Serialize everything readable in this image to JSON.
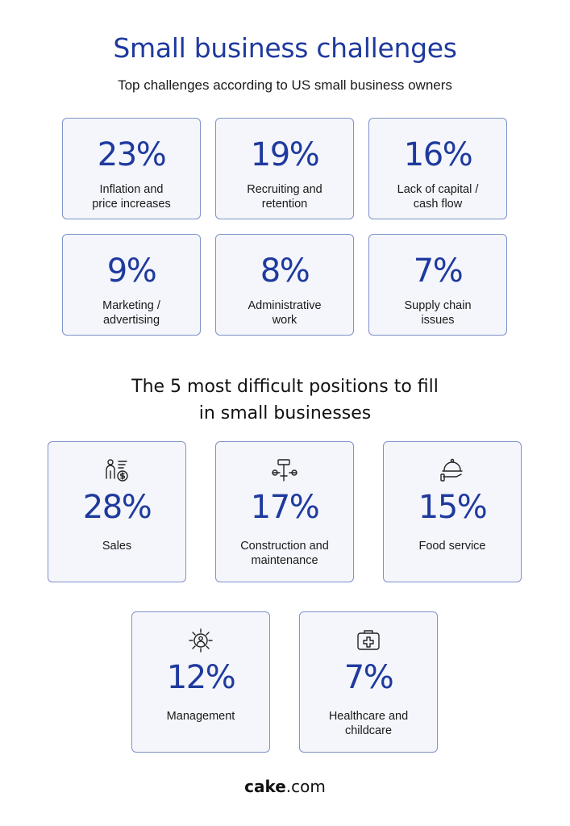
{
  "title": "Small business challenges",
  "subtitle": "Top challenges according to US small business owners",
  "challenges": [
    {
      "pct": "23%",
      "label_1": "Inflation and",
      "label_2": "price increases"
    },
    {
      "pct": "19%",
      "label_1": "Recruiting and",
      "label_2": "retention"
    },
    {
      "pct": "16%",
      "label_1": "Lack of capital /",
      "label_2": "cash flow"
    },
    {
      "pct": "9%",
      "label_1": "Marketing /",
      "label_2": "advertising"
    },
    {
      "pct": "8%",
      "label_1": "Administrative",
      "label_2": "work"
    },
    {
      "pct": "7%",
      "label_1": "Supply chain",
      "label_2": "issues"
    }
  ],
  "positions_title_1": "The 5 most difficult positions to fill",
  "positions_title_2": "in small businesses",
  "positions": [
    {
      "icon": "salesperson-icon",
      "pct": "28%",
      "label_1": "Sales",
      "label_2": ""
    },
    {
      "icon": "tools-icon",
      "pct": "17%",
      "label_1": "Construction and",
      "label_2": "maintenance"
    },
    {
      "icon": "food-cloche-icon",
      "pct": "15%",
      "label_1": "Food service",
      "label_2": ""
    },
    {
      "icon": "management-gear-icon",
      "pct": "12%",
      "label_1": "Management",
      "label_2": ""
    },
    {
      "icon": "medical-kit-icon",
      "pct": "7%",
      "label_1": "Healthcare and",
      "label_2": "childcare"
    }
  ],
  "brand_bold": "cake",
  "brand_rest": ".com",
  "colors": {
    "accent": "#1f3a9e",
    "card_bg": "#f4f6fb",
    "card_border": "#7f92c9"
  }
}
